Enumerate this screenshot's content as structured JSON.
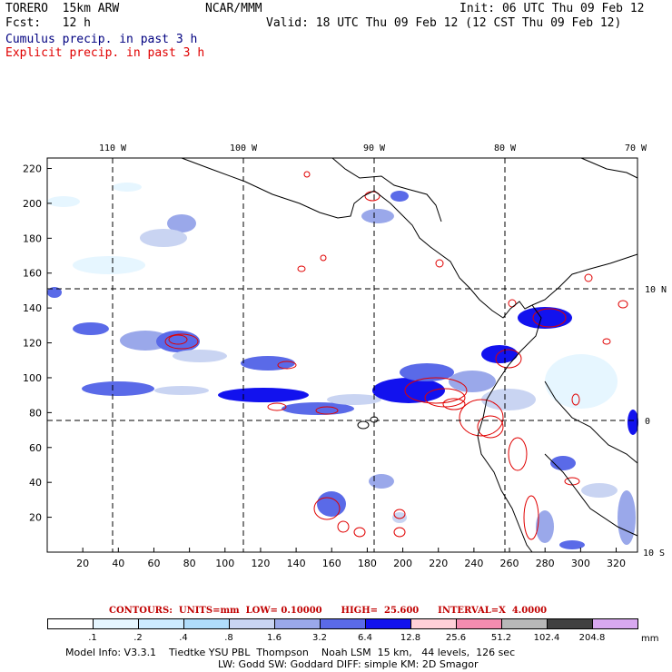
{
  "header": {
    "model": "TORERO  15km ARW",
    "org": "NCAR/MMM",
    "init": "Init: 06 UTC Thu 09 Feb 12",
    "fcst": "Fcst:   12 h",
    "valid": "Valid: 18 UTC Thu 09 Feb 12 (12 CST Thu 09 Feb 12)",
    "legend_cumulus": "Cumulus precip. in past 3 h",
    "legend_explicit": "Explicit precip. in past 3 h",
    "cumulus_color": "#000080",
    "explicit_color": "#e00000"
  },
  "map": {
    "lon_labels": [
      "110 W",
      "100 W",
      "90 W",
      "80 W",
      "70 W"
    ],
    "lat_labels": [
      "10 N",
      "0",
      "10 S"
    ],
    "x_ticks": [
      "20",
      "40",
      "60",
      "80",
      "100",
      "120",
      "140",
      "160",
      "180",
      "200",
      "220",
      "240",
      "260",
      "280",
      "300",
      "320"
    ],
    "y_ticks": [
      "20",
      "40",
      "60",
      "80",
      "100",
      "120",
      "140",
      "160",
      "180",
      "200",
      "220"
    ],
    "x_range": [
      0,
      332
    ],
    "y_range": [
      0,
      226
    ]
  },
  "contours": {
    "label": "CONTOURS:  UNITS=mm  LOW= 0.10000      HIGH=  25.600      INTERVAL=X  4.0000"
  },
  "colorbar": {
    "levels": [
      ".1",
      ".2",
      ".4",
      ".8",
      "1.6",
      "3.2",
      "6.4",
      "12.8",
      "25.6",
      "51.2",
      "102.4",
      "204.8"
    ],
    "unit": "mm",
    "colors": [
      "#ffffff",
      "#e6f6ff",
      "#cdebff",
      "#b0ddfb",
      "#c9d4f2",
      "#9aa8ea",
      "#5a6ae8",
      "#1212ee",
      "#ffd0d8",
      "#f48cb0",
      "#b8b8b8",
      "#404040",
      "#d8a8f0"
    ]
  },
  "footer": {
    "line1": "Model Info: V3.3.1    Tiedtke YSU PBL  Thompson    Noah LSM  15 km,   44 levels,  126 sec",
    "line2": "LW: Godd SW: Goddard DIFF: simple KM: 2D Smagor"
  }
}
